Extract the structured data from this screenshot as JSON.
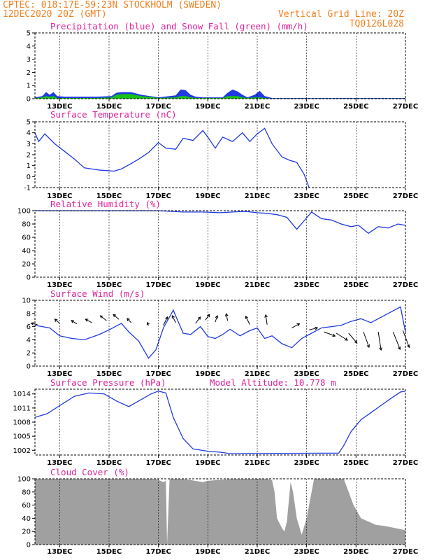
{
  "header": {
    "line1": "CPTEC:   018:17E-59:23N  STOCKHOLM (SWEDEN)",
    "line2_left": "12DEC2020 20Z (GMT)",
    "line2_right": "Vertical Grid Line: 20Z",
    "line3_right": "TQ0126L028"
  },
  "x_axis": {
    "start": "12DEC2020 20Z",
    "tick_labels": [
      "13DEC",
      "15DEC",
      "17DEC",
      "19DEC",
      "21DEC",
      "23DEC",
      "25DEC",
      "27DEC"
    ],
    "tick_day_offsets": [
      1,
      3,
      5,
      7,
      9,
      11,
      13,
      15
    ]
  },
  "chart_data": [
    {
      "type": "area",
      "title": "Precipitation (blue) and Snow Fall (green) (mm/h)",
      "ylim": [
        0,
        5
      ],
      "yticks": [
        0,
        1,
        2,
        3,
        4,
        5
      ],
      "x": [
        0,
        0.3,
        0.45,
        0.6,
        0.75,
        0.9,
        1.2,
        2.2,
        2.5,
        3.1,
        3.3,
        3.5,
        3.9,
        4.3,
        5.0,
        5.7,
        5.9,
        6.1,
        6.3,
        6.5,
        6.8,
        7.6,
        7.8,
        8.0,
        8.2,
        8.4,
        8.6,
        8.9,
        9.1,
        9.3,
        9.6,
        10.3,
        11.2,
        12.0,
        13.0,
        14.0,
        15.0
      ],
      "series": [
        {
          "name": "blue",
          "color": "#1f3ae0",
          "values": [
            0.1,
            0.2,
            0.5,
            0.3,
            0.5,
            0.2,
            0.15,
            0.15,
            0.15,
            0.2,
            0.45,
            0.5,
            0.5,
            0.3,
            0.1,
            0.25,
            0.7,
            0.65,
            0.3,
            0.15,
            0.1,
            0.1,
            0.45,
            0.7,
            0.55,
            0.3,
            0.1,
            0.3,
            0.6,
            0.2,
            0.05,
            0.05,
            0.05,
            0.05,
            0.05,
            0.05,
            0.05
          ]
        },
        {
          "name": "green",
          "color": "#18c018",
          "values": [
            0.05,
            0.1,
            0.2,
            0.15,
            0.2,
            0.05,
            0.05,
            0.05,
            0.05,
            0.1,
            0.3,
            0.35,
            0.35,
            0.2,
            0.05,
            0.1,
            0.2,
            0.2,
            0.1,
            0.05,
            0.05,
            0.05,
            0.2,
            0.2,
            0.2,
            0.1,
            0.05,
            0.1,
            0.1,
            0.05,
            0.02,
            0.02,
            0.02,
            0.02,
            0.02,
            0.02,
            0.02
          ]
        }
      ]
    },
    {
      "type": "line",
      "title": "Surface Temperature (nC)",
      "ylim": [
        -1,
        5
      ],
      "yticks": [
        -1,
        0,
        1,
        2,
        3,
        4,
        5
      ],
      "x": [
        0,
        0.15,
        0.4,
        0.8,
        1.2,
        1.6,
        2.0,
        2.6,
        3.2,
        3.5,
        3.9,
        4.2,
        4.6,
        5.0,
        5.3,
        5.7,
        6.0,
        6.4,
        6.8,
        7.0,
        7.3,
        7.6,
        8.0,
        8.4,
        8.7,
        9.0,
        9.3,
        9.6,
        10.0,
        10.3,
        10.6,
        10.9,
        11.1
      ],
      "series": [
        {
          "name": "",
          "values": [
            4.0,
            3.2,
            3.9,
            3.0,
            2.3,
            1.6,
            0.8,
            0.6,
            0.5,
            0.7,
            1.2,
            1.6,
            2.2,
            3.1,
            2.6,
            2.5,
            3.5,
            3.3,
            4.2,
            3.6,
            2.6,
            3.6,
            3.2,
            4.0,
            3.2,
            3.9,
            4.4,
            3.0,
            1.8,
            1.5,
            1.3,
            0.2,
            -1.0
          ]
        }
      ]
    },
    {
      "type": "line",
      "title": "Relative Humidity (%)",
      "ylim": [
        0,
        100
      ],
      "yticks": [
        0,
        20,
        40,
        60,
        80,
        100
      ],
      "x": [
        0,
        1.0,
        2.0,
        3.0,
        4.0,
        5.0,
        6.0,
        6.8,
        7.5,
        8.0,
        8.5,
        9.0,
        9.4,
        9.8,
        10.2,
        10.6,
        10.9,
        11.2,
        11.6,
        12.0,
        12.4,
        12.8,
        13.1,
        13.5,
        13.9,
        14.3,
        14.7,
        15.0
      ],
      "series": [
        {
          "name": "",
          "values": [
            100,
            100,
            100,
            100,
            100,
            100,
            98,
            98,
            97,
            98,
            99,
            97,
            96,
            94,
            90,
            72,
            85,
            98,
            88,
            86,
            80,
            76,
            78,
            66,
            76,
            74,
            80,
            78
          ]
        }
      ]
    },
    {
      "type": "line",
      "title": "Surface Wind (m/s)",
      "ylim": [
        0,
        10
      ],
      "yticks": [
        0,
        2,
        4,
        6,
        8,
        10
      ],
      "x": [
        0,
        0.3,
        0.6,
        1.0,
        1.5,
        2.0,
        2.6,
        3.0,
        3.5,
        3.8,
        4.2,
        4.6,
        4.9,
        5.2,
        5.6,
        6.0,
        6.3,
        6.7,
        7.0,
        7.3,
        7.6,
        7.9,
        8.3,
        8.7,
        9.0,
        9.3,
        9.6,
        10.0,
        10.4,
        10.8,
        11.2,
        11.6,
        12.0,
        12.4,
        12.8,
        13.2,
        13.6,
        14.0,
        14.4,
        14.8,
        15.0
      ],
      "series": [
        {
          "name": "",
          "values": [
            6.2,
            6.0,
            5.8,
            4.6,
            4.2,
            4.0,
            4.8,
            5.5,
            6.5,
            5.2,
            3.8,
            1.2,
            2.5,
            5.8,
            8.5,
            5.0,
            4.8,
            6.0,
            4.5,
            4.2,
            4.8,
            5.6,
            4.6,
            5.4,
            5.8,
            4.2,
            4.6,
            3.4,
            2.8,
            4.2,
            5.0,
            5.8,
            6.0,
            6.2,
            6.8,
            7.2,
            6.6,
            7.4,
            8.2,
            9.0,
            5.2
          ]
        }
      ],
      "arrows": [
        {
          "x": 0.1,
          "y": 6.3,
          "dx": -9,
          "dy": -2
        },
        {
          "x": 1.0,
          "y": 6.5,
          "dx": -7,
          "dy": -6
        },
        {
          "x": 1.7,
          "y": 6.4,
          "dx": -8,
          "dy": -5
        },
        {
          "x": 2.3,
          "y": 6.6,
          "dx": -9,
          "dy": -5
        },
        {
          "x": 2.9,
          "y": 6.9,
          "dx": -9,
          "dy": -7
        },
        {
          "x": 3.4,
          "y": 7.1,
          "dx": -8,
          "dy": -7
        },
        {
          "x": 3.9,
          "y": 6.6,
          "dx": -6,
          "dy": -6
        },
        {
          "x": 4.6,
          "y": 6.2,
          "dx": -2,
          "dy": -4
        },
        {
          "x": 5.2,
          "y": 6.2,
          "dx": 6,
          "dy": -12
        },
        {
          "x": 5.7,
          "y": 6.6,
          "dx": -5,
          "dy": -10
        },
        {
          "x": 6.5,
          "y": 6.5,
          "dx": 7,
          "dy": -9
        },
        {
          "x": 6.9,
          "y": 7.0,
          "dx": 6,
          "dy": -8
        },
        {
          "x": 7.3,
          "y": 6.7,
          "dx": 3,
          "dy": -9
        },
        {
          "x": 7.8,
          "y": 6.9,
          "dx": -2,
          "dy": -10
        },
        {
          "x": 8.7,
          "y": 6.3,
          "dx": -6,
          "dy": -12
        },
        {
          "x": 9.4,
          "y": 6.3,
          "dx": -2,
          "dy": -14
        },
        {
          "x": 10.4,
          "y": 5.8,
          "dx": 11,
          "dy": -6
        },
        {
          "x": 11.1,
          "y": 5.5,
          "dx": 12,
          "dy": -3
        },
        {
          "x": 11.7,
          "y": 5.2,
          "dx": 16,
          "dy": 6
        },
        {
          "x": 12.2,
          "y": 5.0,
          "dx": 16,
          "dy": 10
        },
        {
          "x": 12.7,
          "y": 5.0,
          "dx": 12,
          "dy": 14
        },
        {
          "x": 13.3,
          "y": 5.2,
          "dx": 8,
          "dy": 22
        },
        {
          "x": 13.9,
          "y": 5.2,
          "dx": 4,
          "dy": 26
        },
        {
          "x": 14.5,
          "y": 5.2,
          "dx": 10,
          "dy": 25
        },
        {
          "x": 14.9,
          "y": 5.4,
          "dx": 9,
          "dy": 24
        }
      ]
    },
    {
      "type": "line",
      "title": "Surface Pressure (hPa)",
      "annotation": "Model Altitude: 10.778 m",
      "ylim": [
        1001,
        1015
      ],
      "yticks": [
        1002,
        1005,
        1008,
        1011,
        1014
      ],
      "x": [
        0,
        0.5,
        1.0,
        1.6,
        2.2,
        2.8,
        3.3,
        3.8,
        4.3,
        4.7,
        5.0,
        5.3,
        5.6,
        6.0,
        6.4,
        7.0,
        7.5,
        7.9,
        12.3,
        12.5,
        12.8,
        13.2,
        13.6,
        14.0,
        14.4,
        14.8,
        15.0
      ],
      "series": [
        {
          "name": "",
          "values": [
            1009.0,
            1009.8,
            1011.5,
            1013.5,
            1014.2,
            1014.0,
            1012.5,
            1011.3,
            1012.8,
            1014.0,
            1014.6,
            1014.2,
            1009.0,
            1004.5,
            1002.3,
            1001.8,
            1001.6,
            1001.3,
            1001.4,
            1003.0,
            1006.0,
            1008.5,
            1010.0,
            1011.5,
            1013.0,
            1014.4,
            1014.6
          ]
        }
      ]
    },
    {
      "type": "area",
      "title": "Cloud Cover (%)",
      "ylim": [
        0,
        100
      ],
      "yticks": [
        0,
        20,
        40,
        60,
        80,
        100
      ],
      "x": [
        0,
        0.5,
        1.0,
        2.0,
        3.0,
        4.0,
        4.9,
        5.2,
        5.3,
        5.35,
        5.45,
        6.0,
        6.8,
        7.0,
        8.0,
        9.0,
        9.4,
        9.6,
        9.7,
        9.8,
        10.0,
        10.1,
        10.2,
        10.35,
        10.45,
        10.6,
        10.8,
        11.0,
        11.3,
        11.6,
        12.0,
        12.5,
        12.7,
        12.9,
        13.2,
        13.5,
        13.8,
        14.2,
        14.6,
        15.0
      ],
      "series": [
        {
          "name": "",
          "color": "#a0a0a0",
          "values": [
            100,
            100,
            100,
            100,
            100,
            100,
            100,
            95,
            97,
            0,
            100,
            100,
            95,
            97,
            100,
            100,
            100,
            98,
            80,
            40,
            25,
            20,
            35,
            95,
            80,
            40,
            15,
            40,
            100,
            100,
            100,
            100,
            80,
            60,
            40,
            35,
            30,
            28,
            25,
            22
          ]
        }
      ]
    }
  ]
}
